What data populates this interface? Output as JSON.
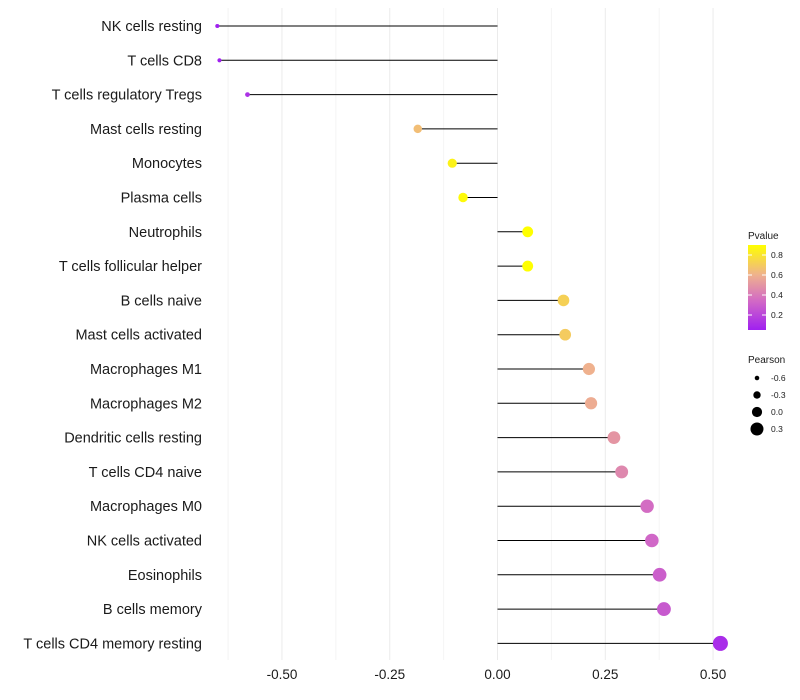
{
  "chart_data": {
    "type": "lollipop",
    "title": "",
    "xlabel": "",
    "ylabel": "",
    "xlim": [
      -0.66,
      0.53
    ],
    "x_ticks": [
      -0.5,
      -0.25,
      0,
      0.25,
      0.5
    ],
    "x_tick_labels": [
      "-0.50",
      "-0.25",
      "0.00",
      "0.25",
      "0.50"
    ],
    "categories": [
      "NK cells resting",
      "T cells CD8",
      "T cells regulatory  Tregs",
      "Mast cells resting",
      "Monocytes",
      "Plasma cells",
      "Neutrophils",
      "T cells follicular helper",
      "B cells naive",
      "Mast cells activated",
      "Macrophages M1",
      "Macrophages M2",
      "Dendritic cells resting",
      "T cells CD4 naive",
      "Macrophages M0",
      "NK cells activated",
      "Eosinophils",
      "B cells memory",
      "T cells CD4 memory resting"
    ],
    "values": [
      -0.65,
      -0.645,
      -0.58,
      -0.185,
      -0.105,
      -0.08,
      0.07,
      0.07,
      0.153,
      0.157,
      0.212,
      0.217,
      0.27,
      0.288,
      0.347,
      0.358,
      0.376,
      0.386,
      0.517
    ],
    "pvalues": [
      0.05,
      0.05,
      0.12,
      0.65,
      0.85,
      0.88,
      0.9,
      0.9,
      0.72,
      0.7,
      0.6,
      0.58,
      0.5,
      0.45,
      0.35,
      0.33,
      0.3,
      0.28,
      0.1
    ],
    "legend_pvalue": {
      "title": "Pvalue",
      "range": [
        0.05,
        0.9
      ],
      "ticks": [
        0.2,
        0.4,
        0.6,
        0.8
      ],
      "tick_labels": [
        "0.2",
        "0.4",
        "0.6",
        "0.8"
      ],
      "low_color": "#a020f0",
      "high_color": "#ffff00"
    },
    "legend_pearson": {
      "title": "Pearson",
      "values": [
        -0.6,
        -0.3,
        0.0,
        0.3
      ],
      "labels": [
        "-0.6",
        "-0.3",
        "0.0",
        "0.3"
      ]
    },
    "legend_placement": "right",
    "grid": true
  }
}
